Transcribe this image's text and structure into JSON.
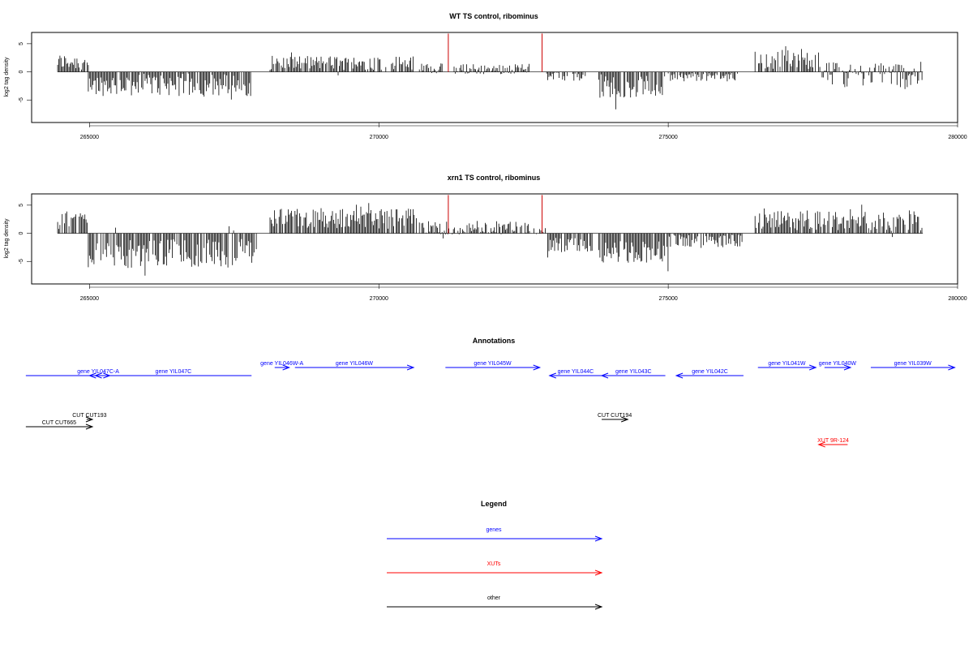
{
  "chart_data": [
    {
      "type": "bar",
      "title": "WT TS control, ribominus",
      "xlabel": "",
      "ylabel": "log2 tag density",
      "xlim": [
        264000,
        280000
      ],
      "ylim": [
        -9,
        7
      ],
      "xticks": [
        265000,
        270000,
        275000,
        280000
      ],
      "xtick_labels": [
        "265000",
        "270000",
        "275000",
        "280000"
      ],
      "yticks": [
        -5,
        0,
        5
      ],
      "ytick_labels": [
        "-5",
        "0",
        "5"
      ],
      "bar_color": "#000000",
      "highlight_color": "#cc0000",
      "highlights": [
        {
          "x": 271200,
          "value": 6.8
        },
        {
          "x": 272820,
          "value": 6.8
        }
      ],
      "segments": [
        {
          "x0": 264450,
          "x1": 264980,
          "level": 1.8,
          "amp": 1.4
        },
        {
          "x0": 264980,
          "x1": 267800,
          "level": -2.3,
          "amp": 2.0
        },
        {
          "x0": 268100,
          "x1": 270600,
          "level": 1.6,
          "amp": 1.3
        },
        {
          "x0": 270700,
          "x1": 271100,
          "level": 0.7,
          "amp": 0.8
        },
        {
          "x0": 271300,
          "x1": 272600,
          "level": 0.5,
          "amp": 0.9
        },
        {
          "x0": 272900,
          "x1": 273600,
          "level": -0.8,
          "amp": 0.8
        },
        {
          "x0": 273800,
          "x1": 274950,
          "level": -2.6,
          "amp": 2.0
        },
        {
          "x0": 275000,
          "x1": 276200,
          "level": -0.9,
          "amp": 0.8
        },
        {
          "x0": 276500,
          "x1": 277600,
          "level": 2.2,
          "amp": 1.8
        },
        {
          "x0": 277600,
          "x1": 279400,
          "level": -0.5,
          "amp": 2.3
        }
      ]
    },
    {
      "type": "bar",
      "title": "xrn1 TS control, ribominus",
      "xlabel": "",
      "ylabel": "log2 tag density",
      "xlim": [
        264000,
        280000
      ],
      "ylim": [
        -9,
        7
      ],
      "xticks": [
        265000,
        270000,
        275000,
        280000
      ],
      "xtick_labels": [
        "265000",
        "270000",
        "275000",
        "280000"
      ],
      "yticks": [
        -5,
        0,
        5
      ],
      "ytick_labels": [
        "-5",
        "0",
        "5"
      ],
      "bar_color": "#000000",
      "highlight_color": "#cc0000",
      "highlights": [
        {
          "x": 271200,
          "value": 6.8
        },
        {
          "x": 272820,
          "value": 6.8
        }
      ],
      "segments": [
        {
          "x0": 264450,
          "x1": 264980,
          "level": 2.3,
          "amp": 1.6
        },
        {
          "x0": 264980,
          "x1": 267900,
          "level": -3.5,
          "amp": 2.6
        },
        {
          "x0": 268100,
          "x1": 270650,
          "level": 2.6,
          "amp": 1.8
        },
        {
          "x0": 270700,
          "x1": 272900,
          "level": 1.0,
          "amp": 1.2
        },
        {
          "x0": 272900,
          "x1": 273700,
          "level": -2.2,
          "amp": 1.4
        },
        {
          "x0": 273800,
          "x1": 275000,
          "level": -3.2,
          "amp": 2.0
        },
        {
          "x0": 275000,
          "x1": 276300,
          "level": -1.4,
          "amp": 1.2
        },
        {
          "x0": 276500,
          "x1": 279400,
          "level": 2.2,
          "amp": 1.8
        }
      ]
    }
  ],
  "annotations": {
    "title": "Annotations",
    "features": [
      {
        "label": "",
        "kind": "gene",
        "start": 263900,
        "end": 265350,
        "strand": "+",
        "row": 0
      },
      {
        "label": "gene YIL047C-A",
        "kind": "gene",
        "start": 265000,
        "end": 265300,
        "strand": "-",
        "row": 0
      },
      {
        "label": "gene YIL047C",
        "kind": "gene",
        "start": 265100,
        "end": 267800,
        "strand": "-",
        "row": 0
      },
      {
        "label": "gene YIL046W-A",
        "kind": "gene",
        "start": 268200,
        "end": 268450,
        "strand": "+",
        "row": 1
      },
      {
        "label": "gene YIL046W",
        "kind": "gene",
        "start": 268550,
        "end": 270600,
        "strand": "+",
        "row": 1
      },
      {
        "label": "gene YIL045W",
        "kind": "gene",
        "start": 271150,
        "end": 272780,
        "strand": "+",
        "row": 1
      },
      {
        "label": "gene YIL044C",
        "kind": "gene",
        "start": 272950,
        "end": 273850,
        "strand": "-",
        "row": 0
      },
      {
        "label": "gene YIL043C",
        "kind": "gene",
        "start": 273850,
        "end": 274950,
        "strand": "-",
        "row": 0
      },
      {
        "label": "gene YIL042C",
        "kind": "gene",
        "start": 275140,
        "end": 276300,
        "strand": "-",
        "row": 0
      },
      {
        "label": "gene YIL041W",
        "kind": "gene",
        "start": 276550,
        "end": 277550,
        "strand": "+",
        "row": 1
      },
      {
        "label": "gene YIL040W",
        "kind": "gene",
        "start": 277700,
        "end": 278150,
        "strand": "+",
        "row": 1
      },
      {
        "label": "gene YIL039W",
        "kind": "gene",
        "start": 278500,
        "end": 279950,
        "strand": "+",
        "row": 1
      },
      {
        "label": "CUT CUT193",
        "kind": "other",
        "start": 264950,
        "end": 265050,
        "strand": "+",
        "row": 2
      },
      {
        "label": "CUT CUT665",
        "kind": "other",
        "start": 263900,
        "end": 265050,
        "strand": "+",
        "row": 3
      },
      {
        "label": "CUT CUT194",
        "kind": "other",
        "start": 273850,
        "end": 274300,
        "strand": "+",
        "row": 2
      },
      {
        "label": "XUT 9R-124",
        "kind": "xut",
        "start": 277600,
        "end": 278100,
        "strand": "-",
        "row": 4
      }
    ]
  },
  "legend": {
    "title": "Legend",
    "items": [
      {
        "label": "genes",
        "color": "#0000ff"
      },
      {
        "label": "XUTs",
        "color": "#ff0000"
      },
      {
        "label": "other",
        "color": "#000000"
      }
    ]
  },
  "colors": {
    "gene": "#0000ff",
    "xut": "#ff0000",
    "other": "#000000"
  }
}
